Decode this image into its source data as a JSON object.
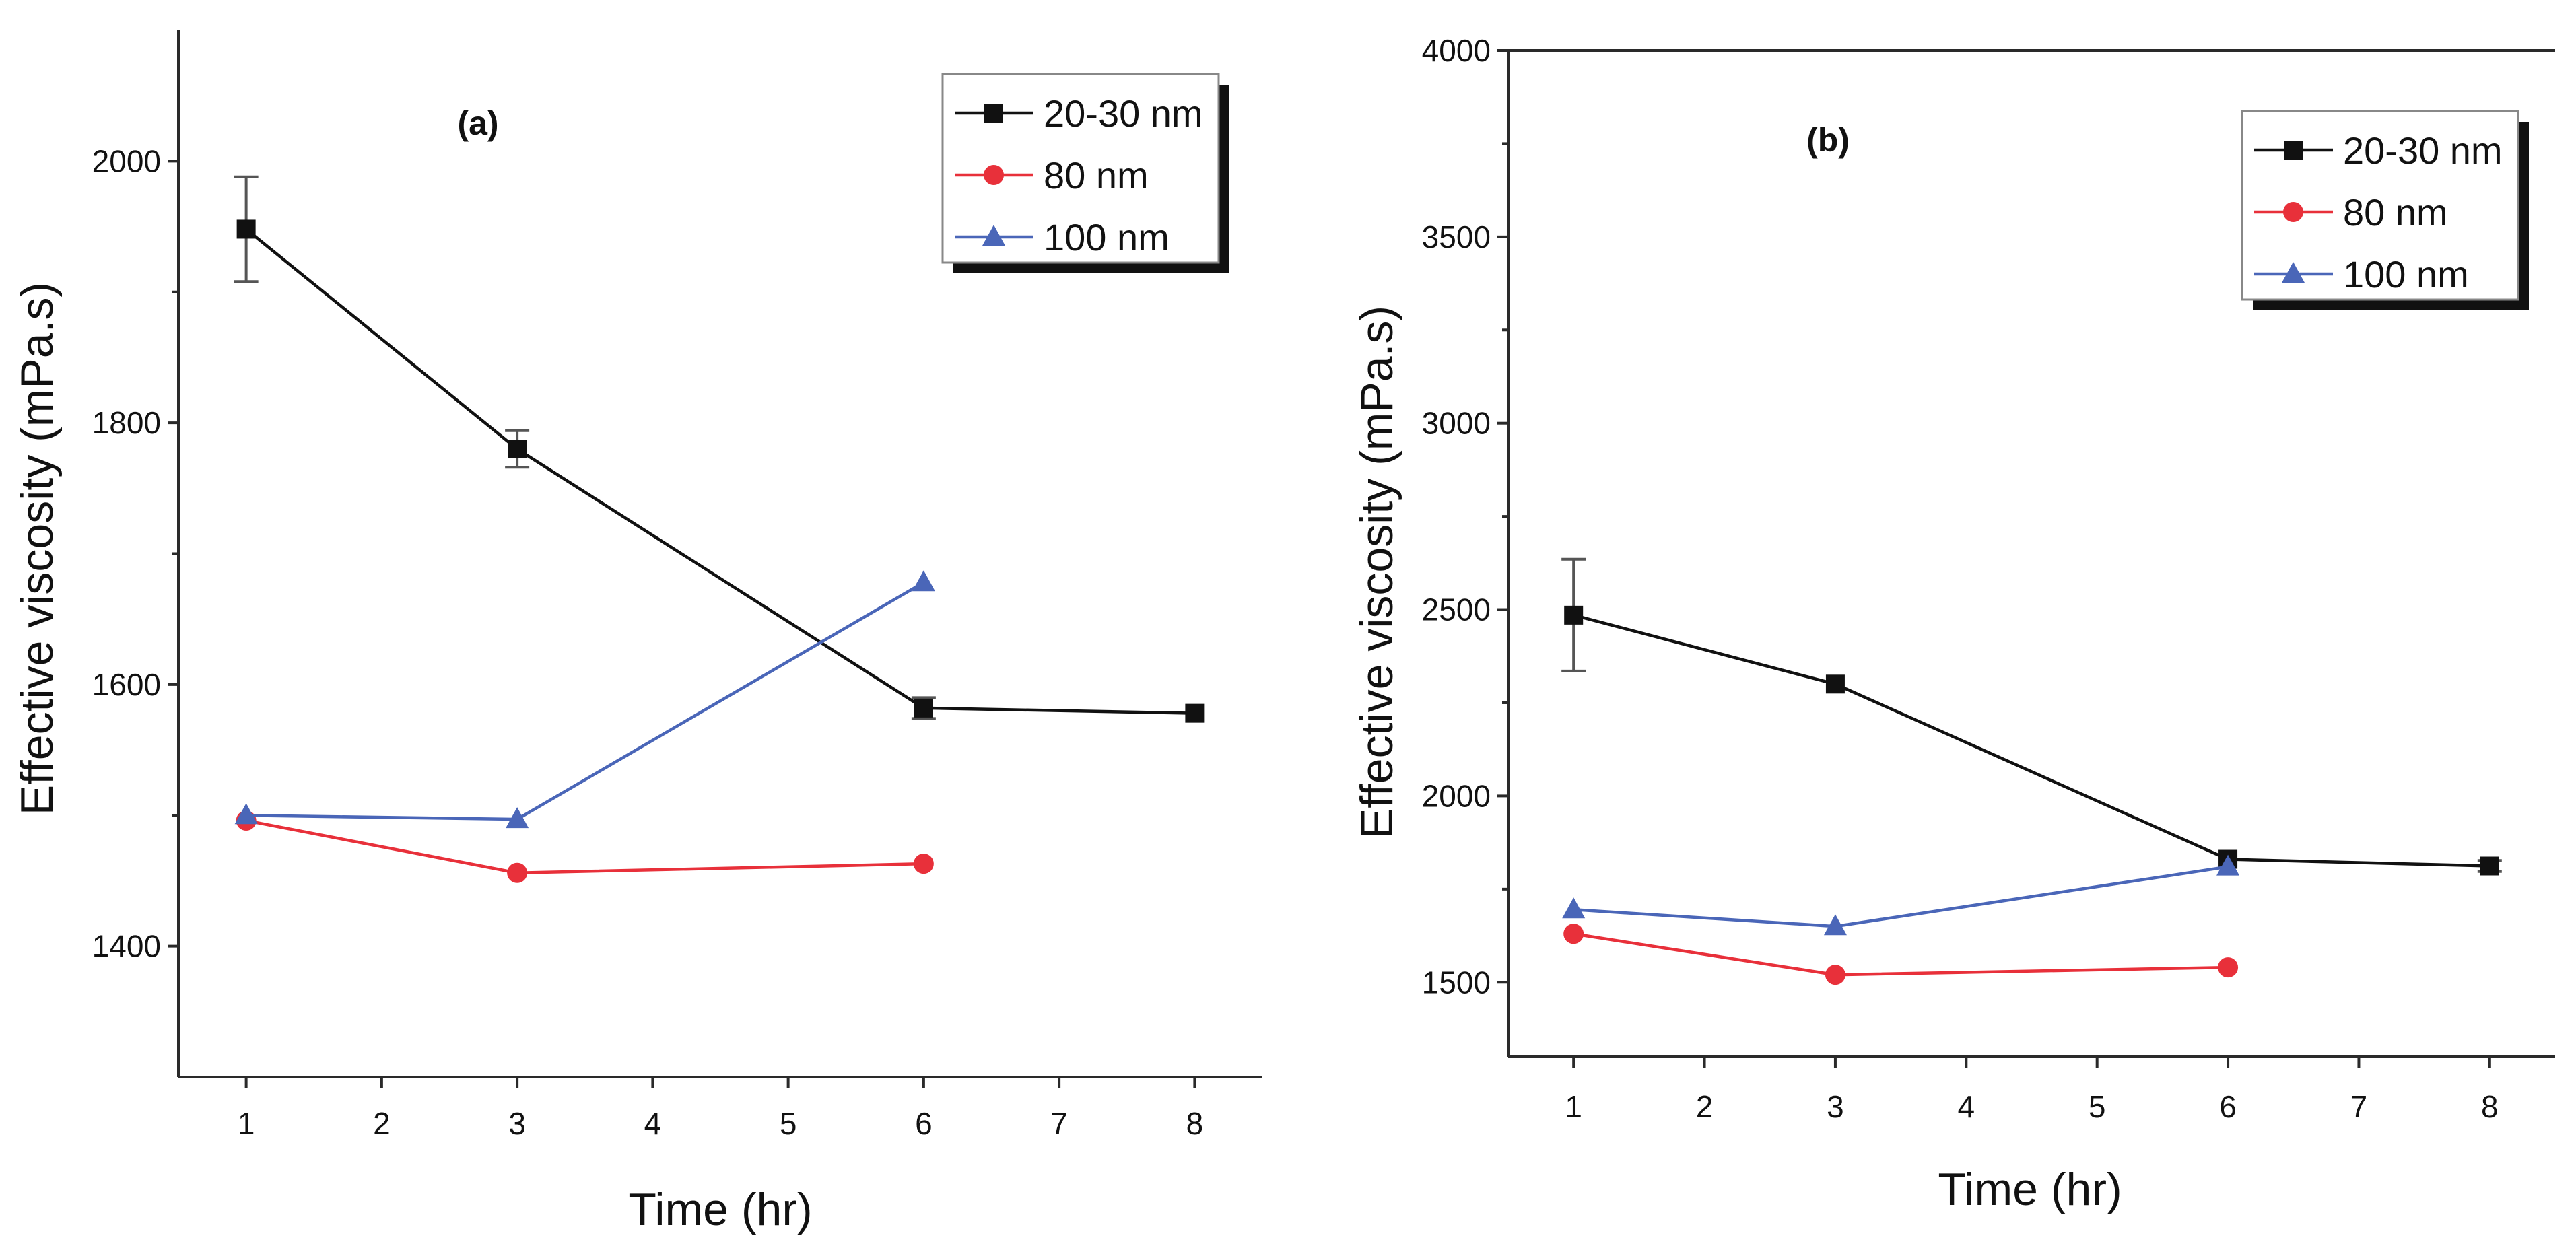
{
  "colors": {
    "series_20_30": "#111111",
    "series_80": "#e8303a",
    "series_100": "#4a66b8",
    "axis": "#2a2a2a"
  },
  "chart_data": [
    {
      "type": "line",
      "panel_label": "(a)",
      "title": "",
      "xlabel": "Time (hr)",
      "ylabel": "Effective viscosity (mPa.s)",
      "xlim": [
        0.5,
        8.5
      ],
      "ylim": [
        1300,
        2100
      ],
      "xticks": [
        1,
        2,
        3,
        4,
        5,
        6,
        7,
        8
      ],
      "yticks": [
        1400,
        1600,
        1800,
        2000
      ],
      "grid": false,
      "legend_position": "top-right",
      "series": [
        {
          "name": "20-30 nm",
          "marker": "square",
          "color": "#111111",
          "points": [
            {
              "x": 1,
              "y": 1948,
              "err": 40
            },
            {
              "x": 3,
              "y": 1780,
              "err": 14
            },
            {
              "x": 6,
              "y": 1582,
              "err": 8
            },
            {
              "x": 8,
              "y": 1578,
              "err": 0
            }
          ]
        },
        {
          "name": "80 nm",
          "marker": "circle",
          "color": "#e8303a",
          "points": [
            {
              "x": 1,
              "y": 1496,
              "err": 0
            },
            {
              "x": 3,
              "y": 1456,
              "err": 0
            },
            {
              "x": 6,
              "y": 1463,
              "err": 0
            }
          ]
        },
        {
          "name": "100 nm",
          "marker": "triangle",
          "color": "#4a66b8",
          "points": [
            {
              "x": 1,
              "y": 1500,
              "err": 0
            },
            {
              "x": 3,
              "y": 1497,
              "err": 0
            },
            {
              "x": 6,
              "y": 1678,
              "err": 0
            }
          ]
        }
      ]
    },
    {
      "type": "line",
      "panel_label": "(b)",
      "title": "",
      "xlabel": "Time (hr)",
      "ylabel": "Effective viscosity (mPa.s)",
      "xlim": [
        0.5,
        8.5
      ],
      "ylim": [
        1300,
        4000
      ],
      "xticks": [
        1,
        2,
        3,
        4,
        5,
        6,
        7,
        8
      ],
      "yticks": [
        1500,
        2000,
        2500,
        3000,
        3500,
        4000
      ],
      "grid": false,
      "legend_position": "top-right",
      "series": [
        {
          "name": "20-30 nm",
          "marker": "square",
          "color": "#111111",
          "points": [
            {
              "x": 1,
              "y": 2485,
              "err": 150
            },
            {
              "x": 3,
              "y": 2300,
              "err": 0
            },
            {
              "x": 6,
              "y": 1830,
              "err": 0
            },
            {
              "x": 8,
              "y": 1812,
              "err": 15
            }
          ]
        },
        {
          "name": "80 nm",
          "marker": "circle",
          "color": "#e8303a",
          "points": [
            {
              "x": 1,
              "y": 1630,
              "err": 0
            },
            {
              "x": 3,
              "y": 1520,
              "err": 0
            },
            {
              "x": 6,
              "y": 1540,
              "err": 0
            }
          ]
        },
        {
          "name": "100 nm",
          "marker": "triangle",
          "color": "#4a66b8",
          "points": [
            {
              "x": 1,
              "y": 1695,
              "err": 0
            },
            {
              "x": 3,
              "y": 1650,
              "err": 0
            },
            {
              "x": 6,
              "y": 1810,
              "err": 0
            }
          ]
        }
      ]
    }
  ]
}
